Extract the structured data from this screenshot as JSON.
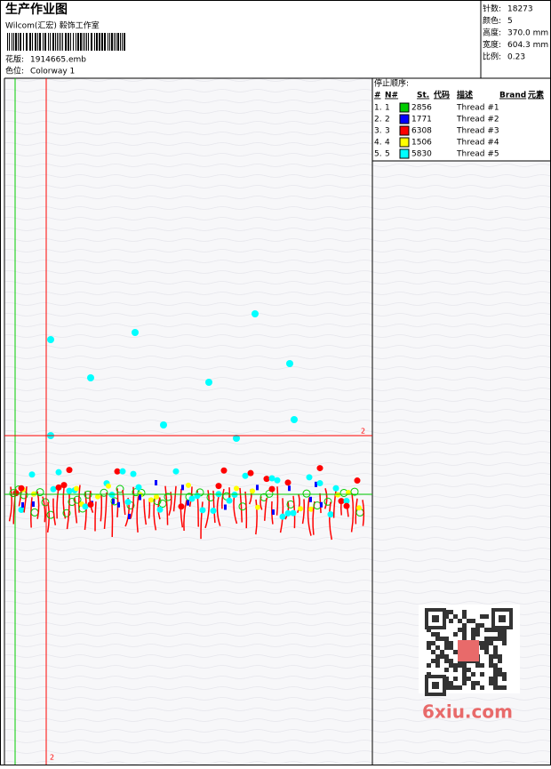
{
  "header": {
    "title": "生产作业图",
    "studio": "Wilcom(汇宏) 毅饰工作室",
    "design_label": "花版:",
    "design_file": "1914665.emb",
    "colorway_label": "色位:",
    "colorway": "Colorway 1"
  },
  "stats": [
    {
      "label": "针数:",
      "value": "18273"
    },
    {
      "label": "颜色:",
      "value": "5"
    },
    {
      "label": "高度:",
      "value": "370.0 mm"
    },
    {
      "label": "宽度:",
      "value": "604.3 mm"
    },
    {
      "label": "比例:",
      "value": "0.23"
    }
  ],
  "stop_sequence": {
    "title": "停止顺序:",
    "columns": [
      "#",
      "N#",
      "St.",
      "代码",
      "描述",
      "Brand",
      "元素"
    ],
    "rows": [
      {
        "index": "1.",
        "needle": "1",
        "color": "#00cc00",
        "code": "2856",
        "description": "Thread #1"
      },
      {
        "index": "2.",
        "needle": "2",
        "color": "#0000ff",
        "code": "1771",
        "description": "Thread #2"
      },
      {
        "index": "3.",
        "needle": "3",
        "color": "#ff0000",
        "code": "6308",
        "description": "Thread #3"
      },
      {
        "index": "4.",
        "needle": "4",
        "color": "#ffff00",
        "code": "1506",
        "description": "Thread #4"
      },
      {
        "index": "5.",
        "needle": "5",
        "color": "#00ffff",
        "code": "5830",
        "description": "Thread #5"
      }
    ]
  },
  "canvas": {
    "h_line_label": "2",
    "v_line_label": "2"
  },
  "watermark": {
    "site": "6xiu.com"
  }
}
